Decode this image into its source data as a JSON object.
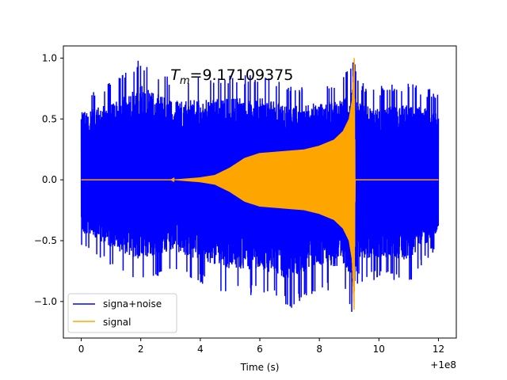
{
  "chart_data": {
    "type": "line",
    "xlabel": "Time (s)",
    "ylabel": "",
    "x_offset_label": "+1e8",
    "xlim": [
      -0.6,
      12.6
    ],
    "ylim": [
      -1.3,
      1.1
    ],
    "xticks": [
      0,
      2,
      4,
      6,
      8,
      10,
      12
    ],
    "xtick_labels": [
      "0",
      "2",
      "4",
      "6",
      "8",
      "10",
      "12"
    ],
    "yticks": [
      1.0,
      0.5,
      0.0,
      -0.5,
      -1.0
    ],
    "ytick_labels": [
      "1.0",
      "0.5",
      "0.0",
      "−0.5",
      "−1.0"
    ],
    "annotation": {
      "prefix": "T",
      "subscript": "m",
      "value": "=9.17109375",
      "x": 3.0,
      "y": 0.82
    },
    "legend_position": "lower left",
    "grid": false,
    "series": [
      {
        "name": "signa+noise",
        "color": "#0000ff",
        "x_range": [
          0,
          12
        ],
        "envelope": {
          "x": [
            0,
            1,
            2,
            3,
            4,
            5,
            6,
            7,
            8,
            8.8,
            9.0,
            9.17,
            9.3,
            10,
            11,
            12
          ],
          "upper": [
            0.73,
            0.8,
            1.0,
            0.84,
            0.85,
            0.86,
            0.88,
            0.78,
            0.82,
            0.85,
            0.96,
            1.0,
            0.82,
            0.77,
            0.8,
            0.73
          ],
          "lower": [
            -0.55,
            -0.72,
            -0.85,
            -0.75,
            -0.85,
            -0.95,
            -0.95,
            -1.07,
            -0.9,
            -0.95,
            -1.05,
            -1.21,
            -0.85,
            -0.82,
            -0.85,
            -0.55
          ]
        }
      },
      {
        "name": "signal",
        "color": "#ffa500",
        "x_range": [
          0,
          12
        ],
        "envelope": {
          "x": [
            0,
            3.0,
            4.0,
            4.5,
            5.0,
            5.5,
            6.0,
            6.5,
            7.0,
            7.5,
            8.0,
            8.5,
            8.8,
            9.0,
            9.1,
            9.17,
            9.2,
            12
          ],
          "upper": [
            0,
            0,
            0.02,
            0.04,
            0.1,
            0.18,
            0.22,
            0.23,
            0.24,
            0.25,
            0.28,
            0.33,
            0.4,
            0.5,
            0.65,
            1.0,
            0,
            0
          ],
          "lower": [
            0,
            0,
            -0.02,
            -0.04,
            -0.1,
            -0.18,
            -0.22,
            -0.23,
            -0.24,
            -0.25,
            -0.28,
            -0.33,
            -0.4,
            -0.5,
            -0.65,
            -1.1,
            0,
            0
          ]
        }
      }
    ]
  }
}
